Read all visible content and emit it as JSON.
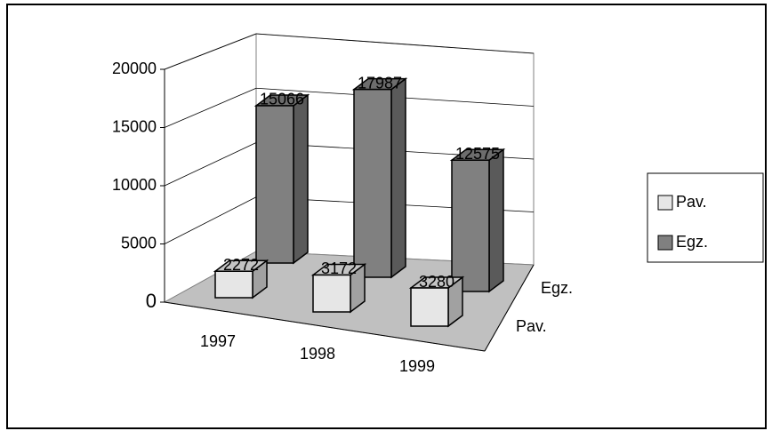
{
  "chart_data": {
    "type": "bar",
    "categories": [
      "1997",
      "1998",
      "1999"
    ],
    "series": [
      {
        "name": "Pav.",
        "color": "#e6e6e6",
        "values": [
          2272,
          3172,
          3280
        ]
      },
      {
        "name": "Egz.",
        "color": "#808080",
        "values": [
          15066,
          17987,
          12575
        ]
      }
    ],
    "ylim": [
      0,
      20000
    ],
    "yticks": [
      0,
      5000,
      10000,
      15000,
      20000
    ],
    "grid": true,
    "legend": "right"
  }
}
